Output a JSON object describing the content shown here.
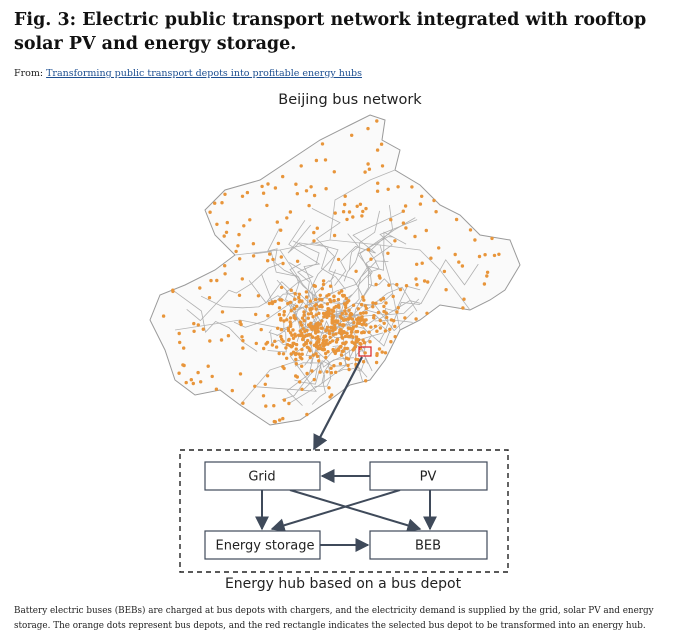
{
  "header": {
    "title": "Fig. 3: Electric public transport network integrated with rooftop solar PV and energy storage.",
    "source_prefix": "From:",
    "source_link": "Transforming public transport depots into profitable energy hubs"
  },
  "figure": {
    "map_title": "Beijing bus network",
    "nodes": [
      {
        "label": "Grid"
      },
      {
        "label": "PV"
      },
      {
        "label": "Energy storage"
      },
      {
        "label": "BEB"
      }
    ],
    "hub_label": "Energy hub based on a bus depot"
  },
  "caption": "Battery electric buses (BEBs) are charged at bus depots with chargers, and the electricity demand is supplied by the grid, solar PV and energy storage. The orange dots represent bus depots, and the red rectangle indicates the selected bus depot to be transformed into an energy hub."
}
